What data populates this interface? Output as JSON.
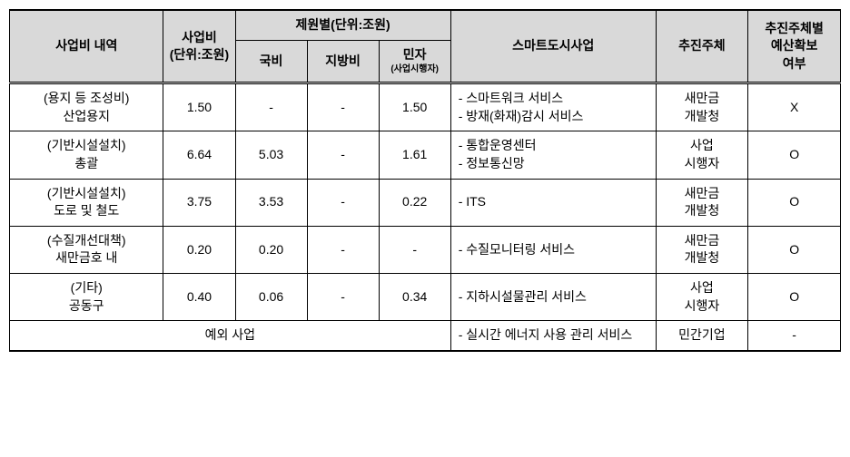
{
  "table": {
    "headers": {
      "desc": "사업비 내역",
      "cost": "사업비\n(단위:조원)",
      "source_group": "제원별(단위:조원)",
      "source_national": "국비",
      "source_local": "지방비",
      "source_private": "민자",
      "source_private_sub": "(사업시행자)",
      "smart": "스마트도시사업",
      "agent": "추진주체",
      "budget": "추진주체별\n예산확보\n여부"
    },
    "rows": [
      {
        "desc": "(용지 등 조성비)\n산업용지",
        "cost": "1.50",
        "national": "-",
        "local": "-",
        "private": "1.50",
        "smart": "- 스마트워크 서비스\n- 방재(화재)감시 서비스",
        "agent": "새만금\n개발청",
        "budget": "X"
      },
      {
        "desc": "(기반시설설치)\n총괄",
        "cost": "6.64",
        "national": "5.03",
        "local": "-",
        "private": "1.61",
        "smart": "- 통합운영센터\n- 정보통신망",
        "agent": "사업\n시행자",
        "budget": "O"
      },
      {
        "desc": "(기반시설설치)\n도로 및 철도",
        "cost": "3.75",
        "national": "3.53",
        "local": "-",
        "private": "0.22",
        "smart": "- ITS",
        "agent": "새만금\n개발청",
        "budget": "O"
      },
      {
        "desc": "(수질개선대책)\n새만금호 내",
        "cost": "0.20",
        "national": "0.20",
        "local": "-",
        "private": "-",
        "smart": "- 수질모니터링 서비스",
        "agent": "새만금\n개발청",
        "budget": "O"
      },
      {
        "desc": "(기타)\n공동구",
        "cost": "0.40",
        "national": "0.06",
        "local": "-",
        "private": "0.34",
        "smart": "- 지하시설물관리 서비스",
        "agent": "사업\n시행자",
        "budget": "O"
      }
    ],
    "exception_row": {
      "desc": "예외 사업",
      "smart": "- 실시간 에너지 사용 관리 서비스",
      "agent": "민간기업",
      "budget": "-"
    }
  },
  "styling": {
    "header_bg": "#d9d9d9",
    "border_color": "#000000",
    "font_family": "Malgun Gothic",
    "base_font_size": 14
  }
}
